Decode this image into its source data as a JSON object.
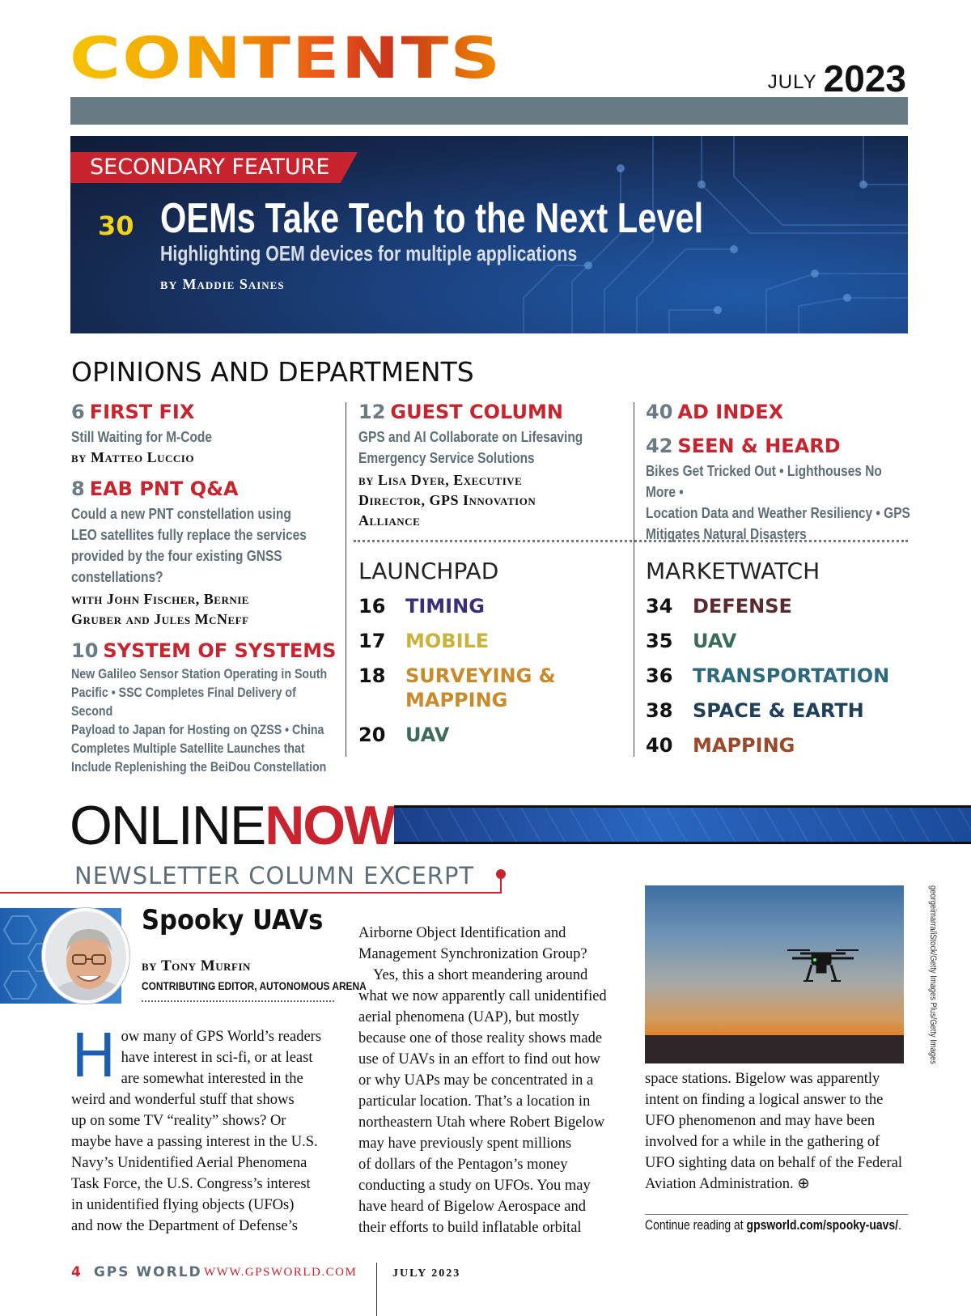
{
  "header": {
    "title": "CONTENTS",
    "month": "JULY",
    "year": "2023"
  },
  "feature": {
    "tag": "SECONDARY FEATURE",
    "page": "30",
    "title": "OEMs Take Tech to the Next Level",
    "subtitle": "Highlighting OEM devices for multiple applications",
    "by": "BY",
    "author": "Maddie Saines"
  },
  "opinions": {
    "heading": "OPINIONS AND DEPARTMENTS",
    "col1": [
      {
        "num": "6",
        "title": "FIRST FIX",
        "desc": [
          "Still Waiting for M-Code"
        ],
        "byline": [
          "by Matteo Luccio"
        ]
      },
      {
        "num": "8",
        "title": "EAB PNT Q&A",
        "desc": [
          "Could a new PNT constellation using",
          "LEO satellites fully replace the services",
          "provided by the four existing GNSS",
          "constellations?"
        ],
        "byline": [
          "with John Fischer, Bernie",
          "Gruber and Jules McNeff"
        ]
      },
      {
        "num": "10",
        "title": "SYSTEM OF SYSTEMS",
        "desc": [
          "New Galileo Sensor Station Operating in South",
          "Pacific • SSC Completes Final Delivery of Second",
          "Payload to Japan for Hosting on QZSS • China",
          "Completes Multiple Satellite Launches that",
          "Include Replenishing the BeiDou Constellation"
        ],
        "byline": []
      }
    ],
    "col2": {
      "num": "12",
      "title": "GUEST COLUMN",
      "desc": [
        "GPS and AI Collaborate on Lifesaving",
        "Emergency Service Solutions"
      ],
      "byline": [
        "by Lisa Dyer, Executive",
        "Director, GPS Innovation",
        "Alliance"
      ]
    },
    "col3": [
      {
        "num": "40",
        "title": "AD INDEX",
        "desc": []
      },
      {
        "num": "42",
        "title": "SEEN & HEARD",
        "desc": [
          "Bikes Get Tricked Out • Lighthouses No More •",
          "Location Data and Weather Resiliency • GPS",
          "Mitigates Natural Disasters"
        ]
      }
    ]
  },
  "launchpad": {
    "label": "LAUNCHPAD",
    "items": [
      {
        "num": "16",
        "title": "TIMING",
        "color": "#3b2f7a"
      },
      {
        "num": "17",
        "title": "MOBILE",
        "color": "#c9b33a"
      },
      {
        "num": "18",
        "title": "SURVEYING &",
        "title2": "MAPPING",
        "color": "#c98a2a"
      },
      {
        "num": "20",
        "title": "UAV",
        "color": "#3d6b5a"
      }
    ]
  },
  "marketwatch": {
    "label": "MARKETWATCH",
    "items": [
      {
        "num": "34",
        "title": "DEFENSE",
        "color": "#5a2a30"
      },
      {
        "num": "35",
        "title": "UAV",
        "color": "#3d6b5a"
      },
      {
        "num": "36",
        "title": "TRANSPORTATION",
        "color": "#2d6a7e"
      },
      {
        "num": "38",
        "title": "SPACE & EARTH",
        "color": "#1f3f5a"
      },
      {
        "num": "40",
        "title": "MAPPING",
        "color": "#9a4a2a"
      }
    ]
  },
  "online": {
    "word1": "ONLINE",
    "word2": "NOW",
    "section": "NEWSLETTER COLUMN EXCERPT",
    "column_title": "Spooky UAVs",
    "by": "by",
    "author": "Tony Murfin",
    "role": "CONTRIBUTING EDITOR, AUTONOMOUS ARENA",
    "col1_dropcap": "H",
    "col1_lines": [
      "ow many of GPS World’s readers",
      "have interest in sci-fi, or at least",
      "are somewhat interested in the",
      "weird and wonderful stuff that shows",
      "up on some TV “reality” shows? Or",
      "maybe have a passing interest in the U.S.",
      "Navy’s Unidentified Aerial Phenomena",
      "Task Force, the U.S. Congress’s interest",
      "in unidentified flying objects (UFOs)",
      "and now the Department of Defense’s"
    ],
    "col2_lines": [
      "Airborne Object Identification and",
      "Management Synchronization Group?",
      "Yes, this a short meandering around",
      "what we now apparently call unidentified",
      "aerial phenomena (UAP), but mostly",
      "because one of those reality shows made",
      "use of UAVs in an effort to find out how",
      "or why UAPs may be concentrated in a",
      "particular location. That’s a location in",
      "northeastern Utah where Robert Bigelow",
      "may have previously spent millions",
      "of dollars of the Pentagon’s money",
      "conducting a study on UFOs. You may",
      "have heard of Bigelow Aerospace and",
      "their efforts to build inflatable orbital"
    ],
    "col3_lines": [
      "space stations. Bigelow was apparently",
      "intent on finding a logical answer to the",
      "UFO phenomenon and may have been",
      "involved for a while in the gathering of",
      "UFO sighting data on behalf of the Federal",
      "Aviation Administration. ⊕"
    ],
    "photo_credit": "georgeimarra/iStock/Getty Images Plus/Getty Images",
    "continue_text": "Continue reading at ",
    "continue_link": "gpsworld.com/spooky-uavs/",
    "continue_end": "."
  },
  "footer": {
    "page": "4",
    "magazine": "GPS WORLD",
    "url": "WWW.GPSWORLD.COM",
    "date": "JULY 2023"
  }
}
